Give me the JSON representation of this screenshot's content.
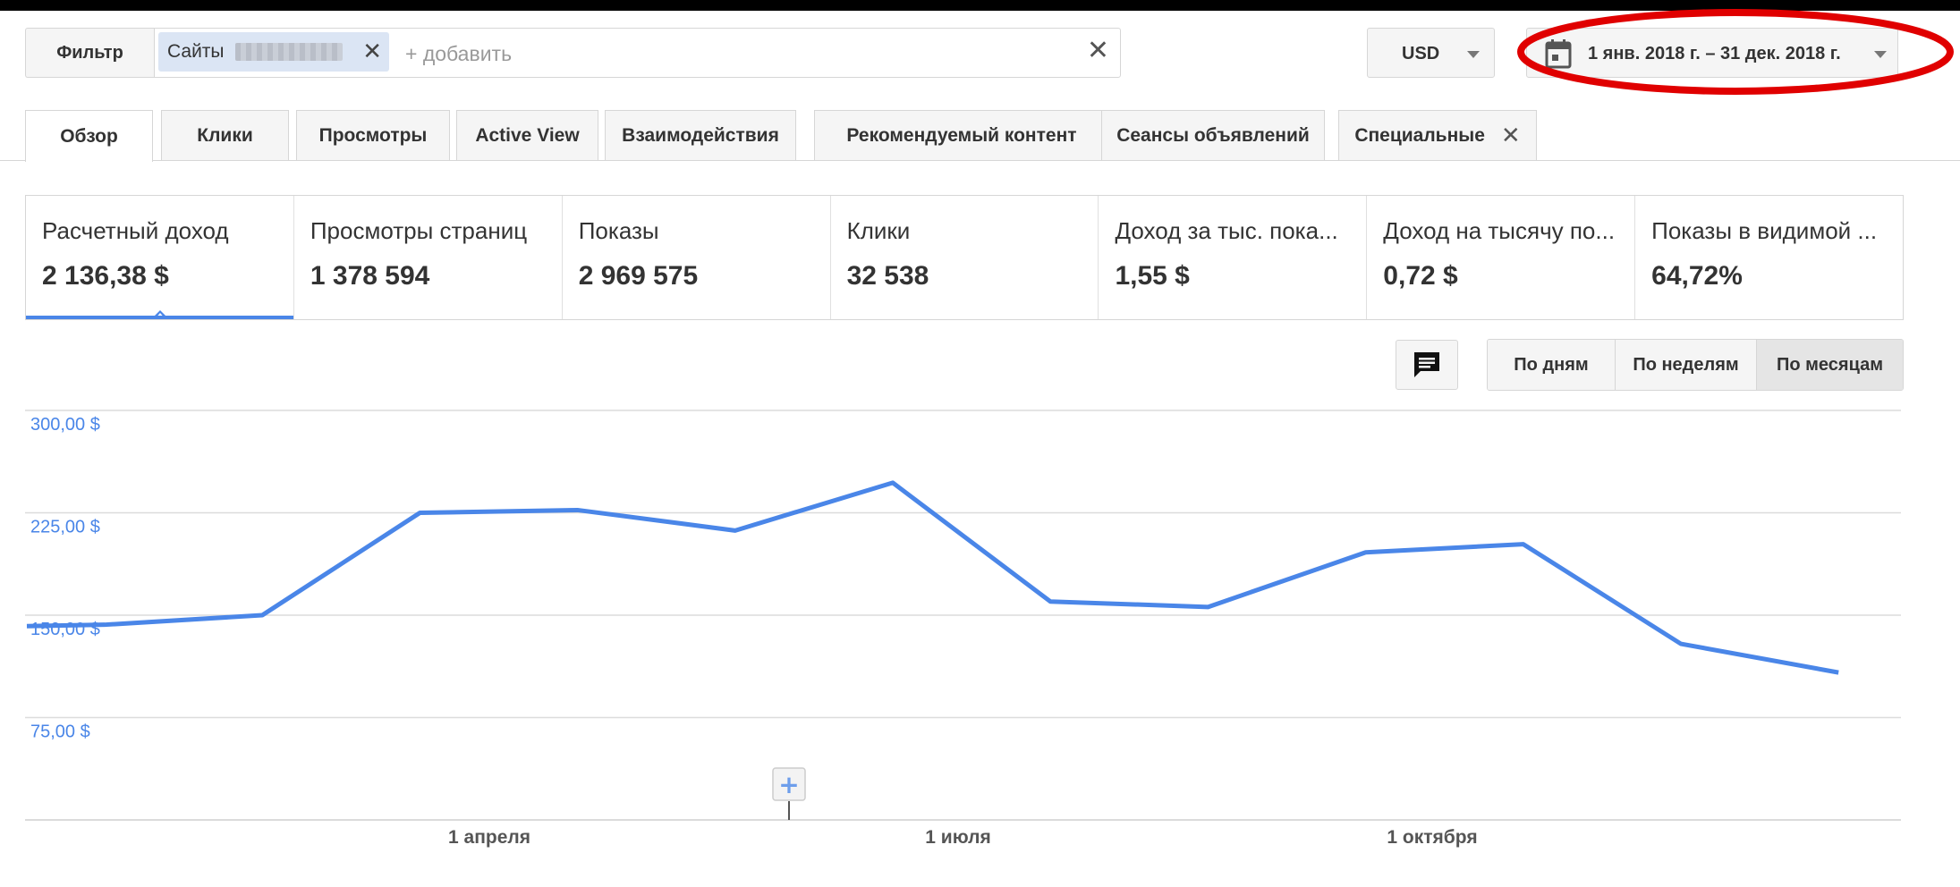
{
  "filter": {
    "button_label": "Фильтр",
    "chip_label": "Сайты",
    "chip_close": "✕",
    "add_placeholder": "+ добавить",
    "clear": "✕"
  },
  "currency": {
    "label": "USD"
  },
  "date_range": {
    "label": "1 янв. 2018 г. – 31 дек. 2018 г."
  },
  "tabs": [
    {
      "label": "Обзор"
    },
    {
      "label": "Клики"
    },
    {
      "label": "Просмотры"
    },
    {
      "label": "Active View"
    },
    {
      "label": "Взаимодействия"
    },
    {
      "label": "Рекомендуемый контент"
    },
    {
      "label": "Сеансы объявлений"
    },
    {
      "label": "Специальные",
      "close": "✕"
    }
  ],
  "metrics": [
    {
      "name": "Расчетный доход",
      "value": "2 136,38 $"
    },
    {
      "name": "Просмотры страниц",
      "value": "1 378 594"
    },
    {
      "name": "Показы",
      "value": "2 969 575"
    },
    {
      "name": "Клики",
      "value": "32 538"
    },
    {
      "name": "Доход за тыс. пока...",
      "value": "1,55 $"
    },
    {
      "name": "Доход на тысячу по...",
      "value": "0,72 $"
    },
    {
      "name": "Показы в видимой ...",
      "value": "64,72%"
    }
  ],
  "granularity": {
    "options": [
      "По дням",
      "По неделям",
      "По месяцам"
    ],
    "selected": "По месяцам"
  },
  "colors": {
    "accent": "#4a86e8",
    "annotation": "#e00000"
  },
  "chart_data": {
    "type": "line",
    "x": [
      "2018-01-01",
      "2018-02-01",
      "2018-03-01",
      "2018-04-01",
      "2018-05-01",
      "2018-06-01",
      "2018-07-01",
      "2018-08-01",
      "2018-09-01",
      "2018-10-01",
      "2018-11-01",
      "2018-12-01"
    ],
    "series": [
      {
        "values": [
          143,
          150,
          225,
          227,
          212,
          247,
          160,
          156,
          196,
          202,
          129,
          108
        ]
      }
    ],
    "y_ticks": [
      "300,00 $",
      "225,00 $",
      "150,00 $",
      "75,00 $"
    ],
    "x_ticks": [
      "1 апреля",
      "1 июля",
      "1 октября"
    ],
    "ylim": [
      0,
      300
    ],
    "grid": true,
    "annotation_marker": "+"
  }
}
